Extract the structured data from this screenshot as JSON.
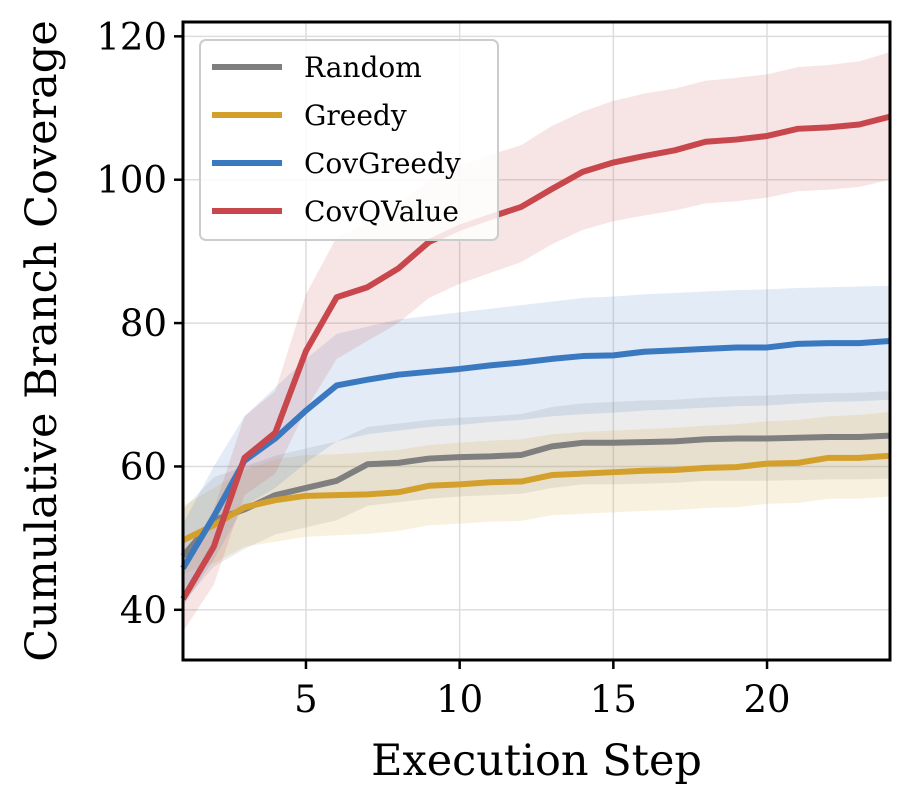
{
  "chart_data": {
    "type": "line",
    "title": "",
    "xlabel": "Execution Step",
    "ylabel": "Cumulative Branch Coverage",
    "xlim": [
      1,
      24
    ],
    "ylim": [
      33,
      122
    ],
    "xticks": [
      5,
      10,
      15,
      20
    ],
    "yticks": [
      40,
      60,
      80,
      100,
      120
    ],
    "grid": true,
    "legend_position": "top-left",
    "x": [
      1,
      2,
      3,
      4,
      5,
      6,
      7,
      8,
      9,
      10,
      11,
      12,
      13,
      14,
      15,
      16,
      17,
      18,
      19,
      20,
      21,
      22,
      23,
      24
    ],
    "series": [
      {
        "name": "Random",
        "color": "#7f7f7f",
        "values": [
          47.5,
          52.5,
          54.0,
          56.0,
          57.0,
          58.0,
          60.3,
          60.5,
          61.1,
          61.3,
          61.4,
          61.6,
          62.8,
          63.3,
          63.3,
          63.4,
          63.5,
          63.8,
          63.9,
          63.9,
          64.0,
          64.1,
          64.1,
          64.3
        ],
        "lower": [
          41.0,
          46.0,
          48.5,
          50.5,
          51.5,
          52.5,
          54.5,
          55.0,
          55.5,
          55.8,
          56.0,
          56.2,
          57.0,
          57.5,
          57.5,
          57.6,
          57.7,
          58.0,
          58.0,
          58.0,
          58.1,
          58.2,
          58.2,
          58.3
        ],
        "upper": [
          54.0,
          58.5,
          60.0,
          61.5,
          62.5,
          63.5,
          65.5,
          66.0,
          66.5,
          66.8,
          67.0,
          67.3,
          68.3,
          68.8,
          69.0,
          69.2,
          69.3,
          69.6,
          69.8,
          69.9,
          70.1,
          70.2,
          70.3,
          70.5
        ]
      },
      {
        "name": "Greedy",
        "color": "#d4a02c",
        "values": [
          49.7,
          51.8,
          54.3,
          55.3,
          55.9,
          56.0,
          56.1,
          56.4,
          57.3,
          57.5,
          57.8,
          57.9,
          58.8,
          59.0,
          59.2,
          59.4,
          59.5,
          59.8,
          59.9,
          60.4,
          60.5,
          61.2,
          61.2,
          61.5
        ],
        "lower": [
          45.0,
          46.5,
          48.8,
          49.5,
          50.2,
          50.4,
          50.6,
          51.0,
          51.8,
          52.0,
          52.3,
          52.4,
          53.2,
          53.4,
          53.6,
          53.8,
          53.9,
          54.2,
          54.3,
          54.8,
          54.9,
          55.5,
          55.5,
          55.8
        ],
        "upper": [
          54.5,
          57.0,
          59.5,
          61.0,
          61.6,
          61.7,
          62.0,
          62.3,
          63.0,
          63.3,
          63.6,
          63.8,
          64.5,
          64.8,
          65.0,
          65.2,
          65.4,
          65.7,
          65.9,
          66.3,
          66.5,
          67.0,
          67.2,
          67.6
        ]
      },
      {
        "name": "CovGreedy",
        "color": "#3a79c0",
        "values": [
          45.8,
          53.0,
          60.8,
          63.9,
          67.8,
          71.3,
          72.1,
          72.8,
          73.2,
          73.6,
          74.1,
          74.5,
          75.0,
          75.4,
          75.5,
          76.0,
          76.2,
          76.4,
          76.6,
          76.6,
          77.1,
          77.2,
          77.2,
          77.5
        ],
        "lower": [
          40.5,
          47.0,
          54.5,
          57.0,
          60.5,
          63.5,
          64.5,
          65.0,
          65.5,
          65.8,
          66.2,
          66.5,
          67.0,
          67.3,
          67.5,
          67.8,
          68.0,
          68.2,
          68.4,
          68.5,
          68.8,
          69.0,
          69.1,
          69.3
        ],
        "upper": [
          52.0,
          60.0,
          67.0,
          71.0,
          75.0,
          78.5,
          79.5,
          80.5,
          81.0,
          81.5,
          82.0,
          82.5,
          83.0,
          83.5,
          83.7,
          84.0,
          84.2,
          84.4,
          84.6,
          84.7,
          84.9,
          85.0,
          85.1,
          85.2
        ]
      },
      {
        "name": "CovQValue",
        "color": "#c8474d",
        "values": [
          41.5,
          48.8,
          61.2,
          64.7,
          76.1,
          83.6,
          85.0,
          87.6,
          91.3,
          93.3,
          94.8,
          96.2,
          98.7,
          101.1,
          102.4,
          103.3,
          104.1,
          105.3,
          105.6,
          106.1,
          107.1,
          107.3,
          107.7,
          108.8
        ],
        "lower": [
          37.0,
          43.5,
          56.0,
          59.0,
          68.0,
          75.0,
          77.5,
          80.0,
          83.5,
          85.5,
          87.0,
          88.5,
          91.0,
          93.0,
          94.2,
          95.0,
          95.7,
          96.7,
          97.0,
          97.5,
          98.4,
          98.6,
          99.0,
          100.0
        ],
        "upper": [
          46.0,
          54.0,
          67.0,
          70.5,
          84.0,
          92.0,
          94.0,
          96.5,
          100.0,
          102.0,
          103.5,
          104.8,
          107.5,
          109.5,
          111.0,
          112.0,
          112.7,
          113.8,
          114.2,
          114.7,
          115.7,
          116.0,
          116.5,
          117.8
        ]
      }
    ]
  }
}
